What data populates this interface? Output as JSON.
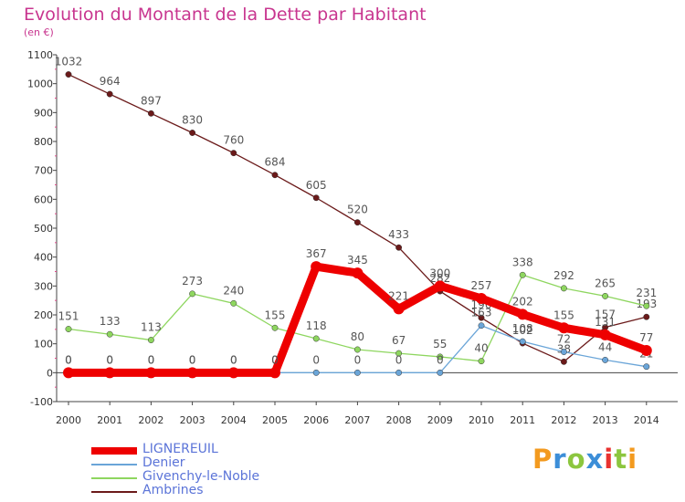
{
  "chart_data": {
    "type": "line",
    "title": "Evolution du Montant de la Dette par Habitant",
    "subtitle": "(en €)",
    "x": [
      "2000",
      "2001",
      "2002",
      "2003",
      "2004",
      "2005",
      "2006",
      "2007",
      "2008",
      "2009",
      "2010",
      "2011",
      "2012",
      "2013",
      "2014"
    ],
    "ylim": [
      -100,
      1100
    ],
    "yticks": [
      "-100",
      "0",
      "100",
      "200",
      "300",
      "400",
      "500",
      "600",
      "700",
      "800",
      "900",
      "1000",
      "1100"
    ],
    "grid": false,
    "legend_position": "bottom-left",
    "series": [
      {
        "name": "Ambrines",
        "color": "#6b1a1a",
        "values": [
          1032,
          964,
          897,
          830,
          760,
          684,
          605,
          520,
          433,
          282,
          190,
          102,
          38,
          157,
          193
        ],
        "labels": [
          "1032",
          "964",
          "897",
          "830",
          "760",
          "684",
          "605",
          "520",
          "433",
          "282",
          "190",
          "102",
          "38",
          "157",
          "193"
        ]
      },
      {
        "name": "Givenchy-le-Noble",
        "color": "#8ed65f",
        "values": [
          151,
          133,
          113,
          273,
          240,
          155,
          118,
          80,
          67,
          55,
          40,
          338,
          292,
          265,
          231
        ],
        "labels": [
          "151",
          "133",
          "113",
          "273",
          "240",
          "155",
          "118",
          "80",
          "67",
          "55",
          "40",
          "338",
          "292",
          "265",
          "231"
        ]
      },
      {
        "name": "Denier",
        "color": "#6aa5d8",
        "values": [
          0,
          0,
          0,
          0,
          0,
          0,
          0,
          0,
          0,
          0,
          163,
          108,
          72,
          44,
          21
        ],
        "labels": [
          "0",
          "0",
          "0",
          "0",
          "0",
          "0",
          "0",
          "0",
          "0",
          "0",
          "163",
          "108",
          "72",
          "44",
          "21"
        ]
      },
      {
        "name": "LIGNEREUIL",
        "color": "#ee0000",
        "values": [
          0,
          0,
          0,
          0,
          0,
          0,
          367,
          345,
          221,
          300,
          257,
          202,
          155,
          131,
          77
        ],
        "labels": [
          "0",
          "0",
          "0",
          "0",
          "0",
          "0",
          "367",
          "345",
          "221",
          "300",
          "257",
          "202",
          "155",
          "131",
          "77"
        ]
      }
    ]
  },
  "legend": {
    "items": [
      {
        "label": "LIGNEREUIL",
        "color": "#ee0000"
      },
      {
        "label": "Denier",
        "color": "#6aa5d8"
      },
      {
        "label": "Givenchy-le-Noble",
        "color": "#8ed65f"
      },
      {
        "label": "Ambrines",
        "color": "#6b1a1a"
      }
    ]
  },
  "logo": {
    "text": "Proxiti"
  }
}
